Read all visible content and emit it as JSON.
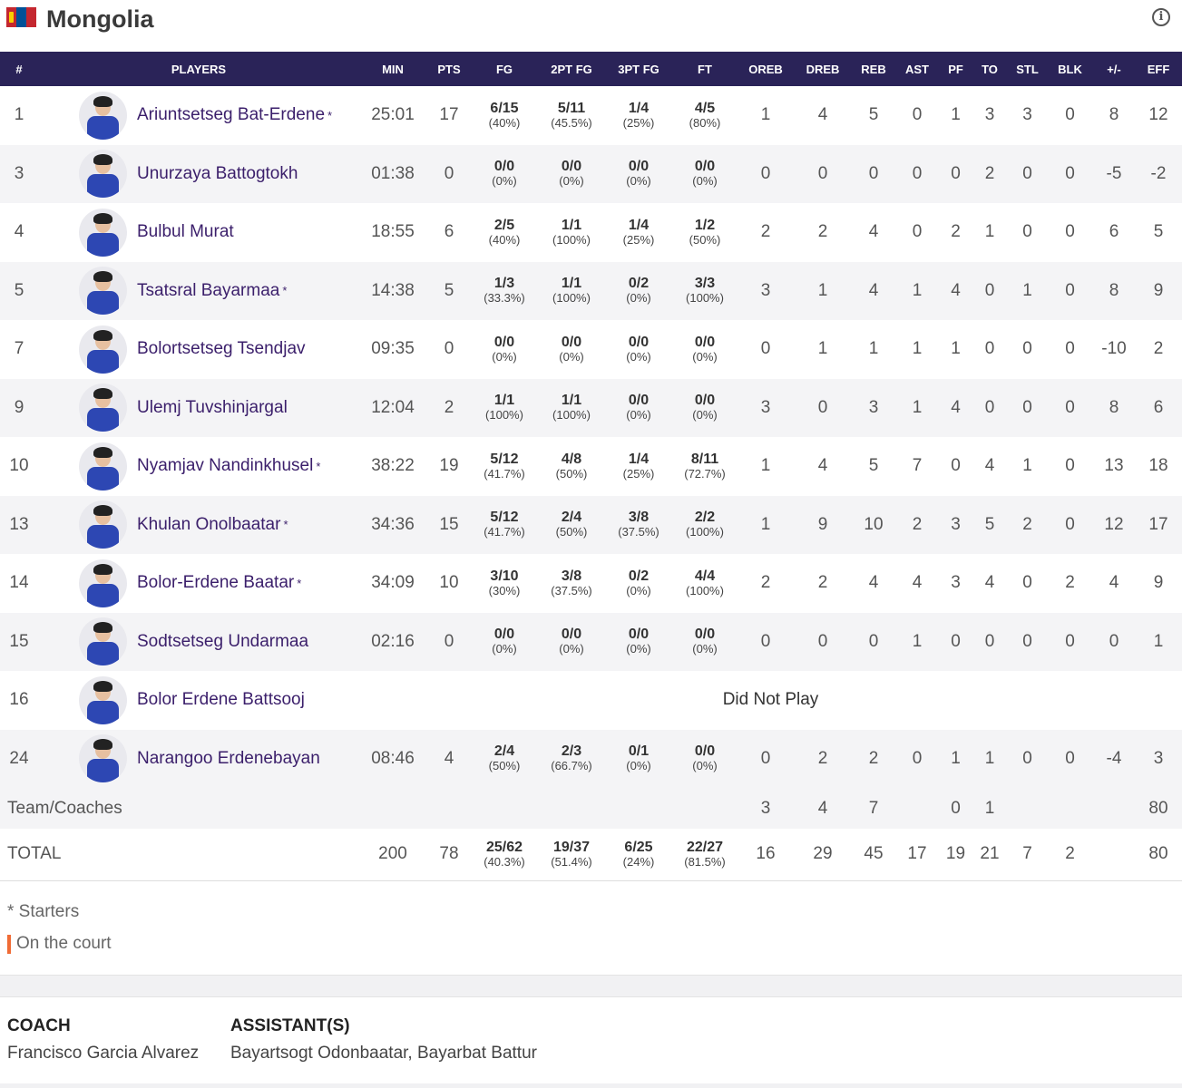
{
  "team": {
    "name": "Mongolia",
    "flag_icon": "mongolia-flag-icon",
    "info_icon": "info-icon"
  },
  "columns": [
    "#",
    "PLAYERS",
    "MIN",
    "PTS",
    "FG",
    "2PT FG",
    "3PT FG",
    "FT",
    "OREB",
    "DREB",
    "REB",
    "AST",
    "PF",
    "TO",
    "STL",
    "BLK",
    "+/-",
    "EFF"
  ],
  "players": [
    {
      "num": "1",
      "name": "Ariuntsetseg Bat-Erdene",
      "starter": "*",
      "min": "25:01",
      "pts": "17",
      "fg": "6/15",
      "fg_pct": "(40%)",
      "fg2": "5/11",
      "fg2_pct": "(45.5%)",
      "fg3": "1/4",
      "fg3_pct": "(25%)",
      "ft": "4/5",
      "ft_pct": "(80%)",
      "oreb": "1",
      "dreb": "4",
      "reb": "5",
      "ast": "0",
      "pf": "1",
      "to": "3",
      "stl": "3",
      "blk": "0",
      "pm": "8",
      "eff": "12"
    },
    {
      "num": "3",
      "name": "Unurzaya Battogtokh",
      "starter": "",
      "min": "01:38",
      "pts": "0",
      "fg": "0/0",
      "fg_pct": "(0%)",
      "fg2": "0/0",
      "fg2_pct": "(0%)",
      "fg3": "0/0",
      "fg3_pct": "(0%)",
      "ft": "0/0",
      "ft_pct": "(0%)",
      "oreb": "0",
      "dreb": "0",
      "reb": "0",
      "ast": "0",
      "pf": "0",
      "to": "2",
      "stl": "0",
      "blk": "0",
      "pm": "-5",
      "eff": "-2"
    },
    {
      "num": "4",
      "name": "Bulbul Murat",
      "starter": "",
      "min": "18:55",
      "pts": "6",
      "fg": "2/5",
      "fg_pct": "(40%)",
      "fg2": "1/1",
      "fg2_pct": "(100%)",
      "fg3": "1/4",
      "fg3_pct": "(25%)",
      "ft": "1/2",
      "ft_pct": "(50%)",
      "oreb": "2",
      "dreb": "2",
      "reb": "4",
      "ast": "0",
      "pf": "2",
      "to": "1",
      "stl": "0",
      "blk": "0",
      "pm": "6",
      "eff": "5"
    },
    {
      "num": "5",
      "name": "Tsatsral Bayarmaa",
      "starter": "*",
      "min": "14:38",
      "pts": "5",
      "fg": "1/3",
      "fg_pct": "(33.3%)",
      "fg2": "1/1",
      "fg2_pct": "(100%)",
      "fg3": "0/2",
      "fg3_pct": "(0%)",
      "ft": "3/3",
      "ft_pct": "(100%)",
      "oreb": "3",
      "dreb": "1",
      "reb": "4",
      "ast": "1",
      "pf": "4",
      "to": "0",
      "stl": "1",
      "blk": "0",
      "pm": "8",
      "eff": "9"
    },
    {
      "num": "7",
      "name": "Bolortsetseg Tsendjav",
      "starter": "",
      "min": "09:35",
      "pts": "0",
      "fg": "0/0",
      "fg_pct": "(0%)",
      "fg2": "0/0",
      "fg2_pct": "(0%)",
      "fg3": "0/0",
      "fg3_pct": "(0%)",
      "ft": "0/0",
      "ft_pct": "(0%)",
      "oreb": "0",
      "dreb": "1",
      "reb": "1",
      "ast": "1",
      "pf": "1",
      "to": "0",
      "stl": "0",
      "blk": "0",
      "pm": "-10",
      "eff": "2"
    },
    {
      "num": "9",
      "name": "Ulemj Tuvshinjargal",
      "starter": "",
      "min": "12:04",
      "pts": "2",
      "fg": "1/1",
      "fg_pct": "(100%)",
      "fg2": "1/1",
      "fg2_pct": "(100%)",
      "fg3": "0/0",
      "fg3_pct": "(0%)",
      "ft": "0/0",
      "ft_pct": "(0%)",
      "oreb": "3",
      "dreb": "0",
      "reb": "3",
      "ast": "1",
      "pf": "4",
      "to": "0",
      "stl": "0",
      "blk": "0",
      "pm": "8",
      "eff": "6"
    },
    {
      "num": "10",
      "name": "Nyamjav Nandinkhusel",
      "starter": "*",
      "min": "38:22",
      "pts": "19",
      "fg": "5/12",
      "fg_pct": "(41.7%)",
      "fg2": "4/8",
      "fg2_pct": "(50%)",
      "fg3": "1/4",
      "fg3_pct": "(25%)",
      "ft": "8/11",
      "ft_pct": "(72.7%)",
      "oreb": "1",
      "dreb": "4",
      "reb": "5",
      "ast": "7",
      "pf": "0",
      "to": "4",
      "stl": "1",
      "blk": "0",
      "pm": "13",
      "eff": "18"
    },
    {
      "num": "13",
      "name": "Khulan Onolbaatar",
      "starter": "*",
      "min": "34:36",
      "pts": "15",
      "fg": "5/12",
      "fg_pct": "(41.7%)",
      "fg2": "2/4",
      "fg2_pct": "(50%)",
      "fg3": "3/8",
      "fg3_pct": "(37.5%)",
      "ft": "2/2",
      "ft_pct": "(100%)",
      "oreb": "1",
      "dreb": "9",
      "reb": "10",
      "ast": "2",
      "pf": "3",
      "to": "5",
      "stl": "2",
      "blk": "0",
      "pm": "12",
      "eff": "17"
    },
    {
      "num": "14",
      "name": "Bolor-Erdene Baatar",
      "starter": "*",
      "min": "34:09",
      "pts": "10",
      "fg": "3/10",
      "fg_pct": "(30%)",
      "fg2": "3/8",
      "fg2_pct": "(37.5%)",
      "fg3": "0/2",
      "fg3_pct": "(0%)",
      "ft": "4/4",
      "ft_pct": "(100%)",
      "oreb": "2",
      "dreb": "2",
      "reb": "4",
      "ast": "4",
      "pf": "3",
      "to": "4",
      "stl": "0",
      "blk": "2",
      "pm": "4",
      "eff": "9"
    },
    {
      "num": "15",
      "name": "Sodtsetseg Undarmaa",
      "starter": "",
      "min": "02:16",
      "pts": "0",
      "fg": "0/0",
      "fg_pct": "(0%)",
      "fg2": "0/0",
      "fg2_pct": "(0%)",
      "fg3": "0/0",
      "fg3_pct": "(0%)",
      "ft": "0/0",
      "ft_pct": "(0%)",
      "oreb": "0",
      "dreb": "0",
      "reb": "0",
      "ast": "1",
      "pf": "0",
      "to": "0",
      "stl": "0",
      "blk": "0",
      "pm": "0",
      "eff": "1"
    },
    {
      "num": "16",
      "name": "Bolor Erdene Battsooj",
      "starter": "",
      "dnp": "Did Not Play"
    },
    {
      "num": "24",
      "name": "Narangoo Erdenebayan",
      "starter": "",
      "min": "08:46",
      "pts": "4",
      "fg": "2/4",
      "fg_pct": "(50%)",
      "fg2": "2/3",
      "fg2_pct": "(66.7%)",
      "fg3": "0/1",
      "fg3_pct": "(0%)",
      "ft": "0/0",
      "ft_pct": "(0%)",
      "oreb": "0",
      "dreb": "2",
      "reb": "2",
      "ast": "0",
      "pf": "1",
      "to": "1",
      "stl": "0",
      "blk": "0",
      "pm": "-4",
      "eff": "3"
    }
  ],
  "team_coaches": {
    "label": "Team/Coaches",
    "oreb": "3",
    "dreb": "4",
    "reb": "7",
    "ast": "",
    "pf": "0",
    "to": "1",
    "stl": "",
    "blk": "",
    "pm": "",
    "eff": "80"
  },
  "total": {
    "label": "TOTAL",
    "min": "200",
    "pts": "78",
    "fg": "25/62",
    "fg_pct": "(40.3%)",
    "fg2": "19/37",
    "fg2_pct": "(51.4%)",
    "fg3": "6/25",
    "fg3_pct": "(24%)",
    "ft": "22/27",
    "ft_pct": "(81.5%)",
    "oreb": "16",
    "dreb": "29",
    "reb": "45",
    "ast": "17",
    "pf": "19",
    "to": "21",
    "stl": "7",
    "blk": "2",
    "pm": "",
    "eff": "80"
  },
  "legend": {
    "starters": "* Starters",
    "on_court": "On the court",
    "on_court_color": "#f06b35"
  },
  "staff": {
    "coach_label": "COACH",
    "coach_name": "Francisco Garcia Alvarez",
    "assistant_label": "ASSISTANT(S)",
    "assistant_names": "Bayartsogt Odonbaatar, Bayarbat Battur"
  },
  "colors": {
    "header_bg": "#2a2358",
    "player_name": "#3b1f6b"
  }
}
